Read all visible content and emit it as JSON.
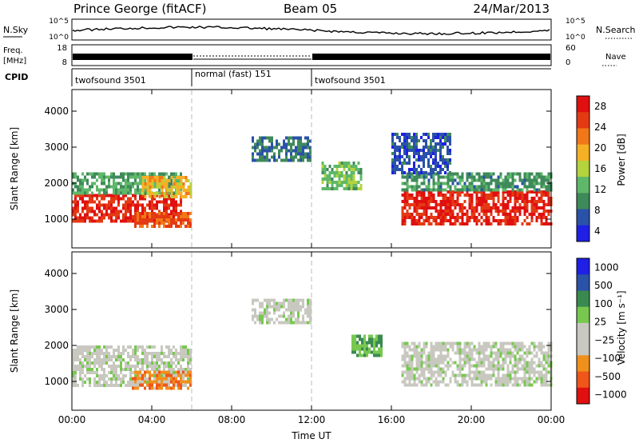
{
  "header": {
    "station": "Prince George (fitACF)",
    "beam": "Beam 05",
    "date": "24/Mar/2013"
  },
  "panels": {
    "nsky": {
      "label": "N.Sky",
      "ticks": [
        "10^5",
        "10^0"
      ],
      "right_label": "N.Search",
      "right_ticks": [
        "10^5",
        "10^0"
      ]
    },
    "freq": {
      "label_line1": "Freq.",
      "label_line2": "[MHz]",
      "ticks": [
        "18",
        "8"
      ],
      "right_label": "Nave",
      "right_ticks": [
        "60",
        "0"
      ]
    },
    "cpid": {
      "label": "CPID",
      "segments": [
        {
          "name": "twofsound 3501",
          "start": 0,
          "end": 6
        },
        {
          "name": "normal (fast) 151",
          "start": 6,
          "end": 12
        },
        {
          "name": "twofsound 3501",
          "start": 12,
          "end": 24
        }
      ]
    }
  },
  "colors": {
    "power_scale": [
      "#1f1fe6",
      "#2a52a8",
      "#3f8a5a",
      "#5fb86a",
      "#b5d33c",
      "#f5b025",
      "#f07818",
      "#e43a14",
      "#e01010"
    ],
    "velocity_scale": [
      "#e01010",
      "#f0561a",
      "#f0901c",
      "#c8c8c0",
      "#c8c8c0",
      "#78c850",
      "#3a8a50",
      "#2a52a8",
      "#1f1fe6"
    ]
  },
  "chart_data": [
    {
      "type": "heatmap",
      "title": "Power",
      "ylabel": "Slant Range [km]",
      "xlabel": "",
      "x_ticks": [
        "00:00",
        "04:00",
        "08:00",
        "12:00",
        "16:00",
        "20:00",
        "00:00"
      ],
      "x_range_hours": [
        0,
        24
      ],
      "y_ticks": [
        "1000",
        "2000",
        "3000",
        "4000"
      ],
      "ylim": [
        200,
        4600
      ],
      "colorbar_label": "Power [dB]",
      "colorbar_ticks": [
        "28",
        "24",
        "20",
        "16",
        "12",
        "8",
        "4"
      ],
      "colorbar_range": [
        0,
        30
      ],
      "regions": [
        {
          "t0": 0.0,
          "t1": 5.5,
          "r0": 900,
          "r1": 1700,
          "level": 27
        },
        {
          "t0": 0.0,
          "t1": 5.5,
          "r0": 1700,
          "r1": 2300,
          "level": 10
        },
        {
          "t0": 3.5,
          "t1": 6.0,
          "r0": 1600,
          "r1": 2200,
          "level": 18
        },
        {
          "t0": 3.0,
          "t1": 6.0,
          "r0": 800,
          "r1": 1200,
          "level": 24
        },
        {
          "t0": 9.0,
          "t1": 12.0,
          "r0": 2600,
          "r1": 3300,
          "level": 7
        },
        {
          "t0": 12.5,
          "t1": 14.5,
          "r0": 1800,
          "r1": 2600,
          "level": 12
        },
        {
          "t0": 16.5,
          "t1": 24.0,
          "r0": 900,
          "r1": 1800,
          "level": 27
        },
        {
          "t0": 16.5,
          "t1": 24.0,
          "r0": 1800,
          "r1": 2300,
          "level": 9
        },
        {
          "t0": 16.0,
          "t1": 19.0,
          "r0": 2300,
          "r1": 3400,
          "level": 5
        }
      ]
    },
    {
      "type": "heatmap",
      "title": "Velocity",
      "ylabel": "Slant Range [km]",
      "xlabel": "Time UT",
      "x_ticks": [
        "00:00",
        "04:00",
        "08:00",
        "12:00",
        "16:00",
        "20:00",
        "00:00"
      ],
      "x_range_hours": [
        0,
        24
      ],
      "y_ticks": [
        "1000",
        "2000",
        "3000",
        "4000"
      ],
      "ylim": [
        200,
        4600
      ],
      "colorbar_label": "Velocity [m s⁻¹]",
      "colorbar_ticks": [
        "1000",
        "500",
        "100",
        "25",
        "−25",
        "−100",
        "−500",
        "−1000"
      ],
      "colorbar_range": [
        -1000,
        1000
      ],
      "regions": [
        {
          "t0": 0.0,
          "t1": 6.0,
          "r0": 900,
          "r1": 2000,
          "level": 0
        },
        {
          "t0": 3.0,
          "t1": 6.0,
          "r0": 800,
          "r1": 1300,
          "level": -500
        },
        {
          "t0": 9.0,
          "t1": 12.0,
          "r0": 2600,
          "r1": 3300,
          "level": 0
        },
        {
          "t0": 14.0,
          "t1": 15.5,
          "r0": 1700,
          "r1": 2300,
          "level": 300
        },
        {
          "t0": 16.5,
          "t1": 24.0,
          "r0": 900,
          "r1": 2100,
          "level": 0
        }
      ]
    }
  ]
}
